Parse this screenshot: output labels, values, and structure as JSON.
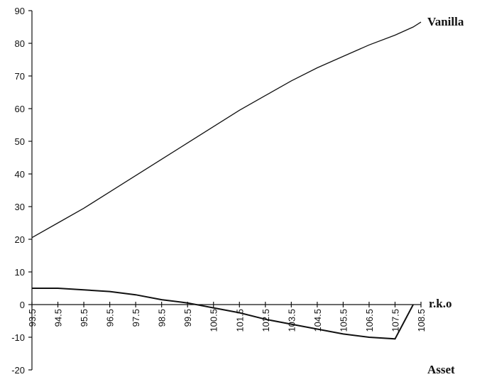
{
  "chart_data": {
    "type": "line",
    "x": [
      93.5,
      94.5,
      95.5,
      96.5,
      97.5,
      98.5,
      99.5,
      100.5,
      101.5,
      102.5,
      103.5,
      104.5,
      105.5,
      106.5,
      107.5,
      108.2,
      108.5
    ],
    "series": [
      {
        "name": "Vanilla",
        "color": "#111111",
        "values": [
          20.5,
          25,
          29.5,
          34.5,
          39.5,
          44.5,
          49.5,
          54.5,
          59.5,
          64,
          68.5,
          72.5,
          76,
          79.5,
          82.5,
          85,
          86.5
        ]
      },
      {
        "name": "r.k.o",
        "color": "#111111",
        "values": [
          5,
          5,
          4.5,
          4,
          3,
          1.5,
          0.5,
          -1,
          -2.5,
          -4.5,
          -6,
          -7.5,
          -9,
          -10,
          -10.5,
          0,
          null
        ]
      }
    ],
    "x_label": "Asset",
    "xlim": [
      93.5,
      108.5
    ],
    "xticks": [
      93.5,
      94.5,
      95.5,
      96.5,
      97.5,
      98.5,
      99.5,
      100.5,
      101.5,
      102.5,
      103.5,
      104.5,
      105.5,
      106.5,
      107.5,
      108.5
    ],
    "ylim": [
      -20,
      90
    ],
    "yticks": [
      -20,
      -10,
      0,
      10,
      20,
      30,
      40,
      50,
      60,
      70,
      80,
      90
    ],
    "grid": false
  }
}
